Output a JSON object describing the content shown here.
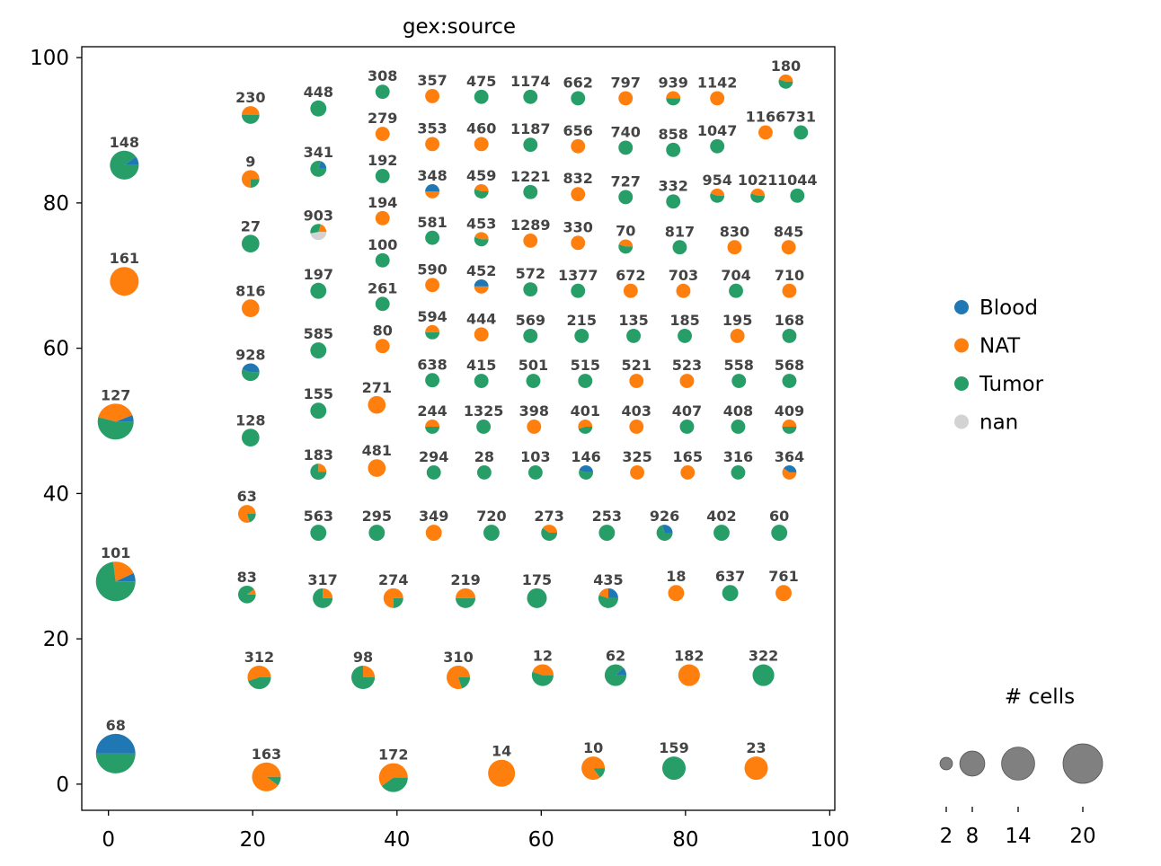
{
  "chart_data": {
    "type": "scatter",
    "subtype": "pie-markers",
    "title": "gex:source",
    "xlim": [
      -3.7,
      100.7
    ],
    "ylim": [
      -3.6,
      101.5
    ],
    "x_ticks": [
      0,
      20,
      40,
      60,
      80,
      100
    ],
    "y_ticks": [
      0,
      20,
      40,
      60,
      80,
      100
    ],
    "grid": false,
    "legend_position": "right",
    "categories": [
      "Blood",
      "NAT",
      "Tumor",
      "nan"
    ],
    "colors": {
      "Blood": "#1f77b4",
      "NAT": "#ff7f0e",
      "Tumor": "#279e68",
      "nan": "#d3d3d3"
    },
    "size_legend": {
      "title": "# cells",
      "values": [
        2,
        8,
        14,
        20
      ]
    },
    "point_fields": [
      "label",
      "x",
      "y",
      "size",
      "Blood",
      "NAT",
      "Tumor",
      "nan"
    ],
    "points": [
      [
        "148",
        2.2,
        85.2,
        10.6,
        0.1,
        0,
        0.9,
        0
      ],
      [
        "161",
        2.2,
        69.2,
        10.6,
        0,
        1,
        0,
        0
      ],
      [
        "127",
        1.0,
        49.9,
        16.5,
        0.06,
        0.4,
        0.54,
        0
      ],
      [
        "101",
        1.0,
        27.9,
        20,
        0.07,
        0.2,
        0.73,
        0
      ],
      [
        "68",
        1.0,
        4.2,
        20,
        0.5,
        0,
        0.5,
        0
      ],
      [
        "230",
        19.7,
        92.1,
        4,
        0,
        0.5,
        0.5,
        0
      ],
      [
        "9",
        19.7,
        83.3,
        4,
        0,
        0.75,
        0.25,
        0
      ],
      [
        "27",
        19.7,
        74.4,
        4,
        0,
        0,
        1,
        0
      ],
      [
        "816",
        19.7,
        65.5,
        4,
        0,
        1,
        0,
        0
      ],
      [
        "928",
        19.7,
        56.7,
        4,
        0.45,
        0,
        0.55,
        0
      ],
      [
        "128",
        19.7,
        47.7,
        4,
        0,
        0,
        1,
        0
      ],
      [
        "63",
        19.2,
        37.2,
        4,
        0,
        0.8,
        0.2,
        0
      ],
      [
        "83",
        19.2,
        26.1,
        4,
        0,
        0.1,
        0.9,
        0
      ],
      [
        "312",
        20.9,
        14.7,
        7,
        0,
        0.55,
        0.45,
        0
      ],
      [
        "163",
        21.9,
        1.0,
        10.6,
        0,
        0.9,
        0.1,
        0
      ],
      [
        "448",
        29.1,
        93.0,
        3.3,
        0,
        0,
        1,
        0
      ],
      [
        "341",
        29.1,
        84.7,
        3.3,
        0.2,
        0,
        0.8,
        0
      ],
      [
        "903",
        29.1,
        76.0,
        3.3,
        0,
        0.2,
        0.33,
        0.47
      ],
      [
        "197",
        29.1,
        67.9,
        3.3,
        0,
        0,
        1,
        0
      ],
      [
        "585",
        29.1,
        59.7,
        3.3,
        0,
        0,
        1,
        0
      ],
      [
        "155",
        29.1,
        51.4,
        3.3,
        0,
        0,
        1,
        0
      ],
      [
        "183",
        29.1,
        43.0,
        3.3,
        0,
        0.25,
        0.75,
        0
      ],
      [
        "563",
        29.1,
        34.6,
        3.3,
        0,
        0,
        1,
        0
      ],
      [
        "317",
        29.7,
        25.6,
        5,
        0,
        0.25,
        0.75,
        0
      ],
      [
        "98",
        35.3,
        14.7,
        7,
        0,
        0.25,
        0.75,
        0
      ],
      [
        "308",
        38.0,
        95.3,
        2.6,
        0,
        0,
        1,
        0
      ],
      [
        "279",
        38.0,
        89.5,
        2.6,
        0,
        1,
        0,
        0
      ],
      [
        "192",
        38.0,
        83.7,
        2.6,
        0,
        0,
        1,
        0
      ],
      [
        "194",
        38.0,
        77.9,
        2.6,
        0,
        1,
        0,
        0
      ],
      [
        "100",
        38.0,
        72.1,
        2.6,
        0,
        0,
        1,
        0
      ],
      [
        "261",
        38.0,
        66.1,
        2.6,
        0,
        0,
        1,
        0
      ],
      [
        "80",
        38.0,
        60.3,
        2.6,
        0,
        1,
        0,
        0
      ],
      [
        "271",
        37.2,
        52.2,
        4,
        0,
        1,
        0,
        0
      ],
      [
        "481",
        37.2,
        43.5,
        4,
        0,
        1,
        0,
        0
      ],
      [
        "295",
        37.2,
        34.6,
        3.3,
        0,
        0,
        1,
        0
      ],
      [
        "274",
        39.5,
        25.6,
        5,
        0,
        0.75,
        0.25,
        0
      ],
      [
        "172",
        39.5,
        0.9,
        10.6,
        0,
        0.6,
        0.4,
        0
      ],
      [
        "357",
        44.9,
        94.7,
        2.6,
        0,
        1,
        0,
        0
      ],
      [
        "353",
        44.9,
        88.1,
        2.6,
        0,
        1,
        0,
        0
      ],
      [
        "348",
        44.9,
        81.6,
        2.6,
        0.5,
        0.5,
        0,
        0
      ],
      [
        "581",
        44.9,
        75.2,
        2.6,
        0,
        0,
        1,
        0
      ],
      [
        "590",
        44.9,
        68.7,
        2.6,
        0,
        1,
        0,
        0
      ],
      [
        "594",
        44.9,
        62.2,
        2.6,
        0,
        0.5,
        0.5,
        0
      ],
      [
        "638",
        44.9,
        55.6,
        2.6,
        0,
        0,
        1,
        0
      ],
      [
        "244",
        44.9,
        49.2,
        2.6,
        0,
        0.5,
        0.5,
        0
      ],
      [
        "294",
        45.1,
        42.9,
        2.6,
        0,
        0,
        1,
        0
      ],
      [
        "349",
        45.1,
        34.6,
        3.3,
        0,
        1,
        0,
        0
      ],
      [
        "219",
        49.5,
        25.6,
        5,
        0,
        0.5,
        0.5,
        0
      ],
      [
        "310",
        48.5,
        14.7,
        7,
        0,
        0.8,
        0.2,
        0
      ],
      [
        "475",
        51.7,
        94.6,
        2.6,
        0,
        0,
        1,
        0
      ],
      [
        "460",
        51.7,
        88.1,
        2.6,
        0,
        1,
        0,
        0
      ],
      [
        "459",
        51.7,
        81.6,
        2.6,
        0,
        0.45,
        0.55,
        0
      ],
      [
        "453",
        51.7,
        75.0,
        2.6,
        0,
        0.45,
        0.55,
        0
      ],
      [
        "452",
        51.7,
        68.5,
        2.6,
        0.5,
        0.5,
        0,
        0
      ],
      [
        "444",
        51.7,
        61.9,
        2.6,
        0,
        1,
        0,
        0
      ],
      [
        "415",
        51.7,
        55.5,
        2.6,
        0,
        0,
        1,
        0
      ],
      [
        "1325",
        52.0,
        49.2,
        2.6,
        0,
        0,
        1,
        0
      ],
      [
        "28",
        52.1,
        42.9,
        2.6,
        0,
        0,
        1,
        0
      ],
      [
        "720",
        53.1,
        34.6,
        3.3,
        0,
        0,
        1,
        0
      ],
      [
        "14",
        54.5,
        1.5,
        9.3,
        0,
        1,
        0,
        0
      ],
      [
        "1174",
        58.5,
        94.6,
        2.6,
        0,
        0,
        1,
        0
      ],
      [
        "1187",
        58.5,
        88.0,
        2.6,
        0,
        0,
        1,
        0
      ],
      [
        "1221",
        58.5,
        81.5,
        2.6,
        0,
        0,
        1,
        0
      ],
      [
        "1289",
        58.5,
        74.8,
        2.6,
        0,
        1,
        0,
        0
      ],
      [
        "572",
        58.5,
        68.1,
        2.6,
        0,
        0,
        1,
        0
      ],
      [
        "569",
        58.5,
        61.7,
        2.6,
        0,
        0,
        1,
        0
      ],
      [
        "501",
        58.9,
        55.5,
        2.6,
        0,
        0,
        1,
        0
      ],
      [
        "398",
        59.0,
        49.2,
        2.6,
        0,
        1,
        0,
        0
      ],
      [
        "103",
        59.2,
        42.9,
        2.6,
        0,
        0,
        1,
        0
      ],
      [
        "273",
        61.1,
        34.6,
        3.3,
        0,
        0.4,
        0.6,
        0
      ],
      [
        "175",
        59.4,
        25.6,
        5,
        0,
        0,
        1,
        0
      ],
      [
        "12",
        60.2,
        15.0,
        6,
        0,
        0.45,
        0.55,
        0
      ],
      [
        "662",
        65.1,
        94.4,
        2.6,
        0,
        0,
        1,
        0
      ],
      [
        "656",
        65.1,
        87.8,
        2.6,
        0,
        1,
        0,
        0
      ],
      [
        "832",
        65.1,
        81.2,
        2.6,
        0,
        1,
        0,
        0
      ],
      [
        "330",
        65.1,
        74.5,
        2.6,
        0,
        1,
        0,
        0
      ],
      [
        "1377",
        65.1,
        67.9,
        2.6,
        0,
        0,
        1,
        0
      ],
      [
        "215",
        65.6,
        61.7,
        2.6,
        0,
        0,
        1,
        0
      ],
      [
        "515",
        66.1,
        55.5,
        2.6,
        0,
        0,
        1,
        0
      ],
      [
        "401",
        66.1,
        49.2,
        2.6,
        0,
        0.55,
        0.45,
        0
      ],
      [
        "146",
        66.2,
        42.9,
        2.6,
        0.45,
        0,
        0.55,
        0
      ],
      [
        "253",
        69.1,
        34.6,
        3.3,
        0,
        0,
        1,
        0
      ],
      [
        "435",
        69.3,
        25.6,
        5,
        0.25,
        0.2,
        0.55,
        0
      ],
      [
        "10",
        67.2,
        2.2,
        7,
        0,
        0.85,
        0.15,
        0
      ],
      [
        "797",
        71.7,
        94.4,
        2.6,
        0,
        1,
        0,
        0
      ],
      [
        "740",
        71.7,
        87.6,
        2.6,
        0,
        0,
        1,
        0
      ],
      [
        "727",
        71.7,
        80.8,
        2.6,
        0,
        0,
        1,
        0
      ],
      [
        "70",
        71.7,
        74.0,
        2.6,
        0,
        0.45,
        0.55,
        0
      ],
      [
        "672",
        72.4,
        67.9,
        2.6,
        0,
        1,
        0,
        0
      ],
      [
        "135",
        72.8,
        61.7,
        2.6,
        0,
        0,
        1,
        0
      ],
      [
        "521",
        73.2,
        55.5,
        2.6,
        0,
        1,
        0,
        0
      ],
      [
        "403",
        73.2,
        49.2,
        2.6,
        0,
        1,
        0,
        0
      ],
      [
        "325",
        73.3,
        42.9,
        2.6,
        0,
        1,
        0,
        0
      ],
      [
        "62",
        70.3,
        15.0,
        6,
        0.12,
        0,
        0.88,
        0
      ],
      [
        "939",
        78.3,
        94.4,
        2.6,
        0,
        0.5,
        0.5,
        0
      ],
      [
        "858",
        78.3,
        87.3,
        2.6,
        0,
        0,
        1,
        0
      ],
      [
        "332",
        78.3,
        80.2,
        2.6,
        0,
        0,
        1,
        0
      ],
      [
        "817",
        79.2,
        73.9,
        2.6,
        0,
        0,
        1,
        0
      ],
      [
        "703",
        79.7,
        67.9,
        2.6,
        0,
        1,
        0,
        0
      ],
      [
        "185",
        79.9,
        61.7,
        2.6,
        0,
        0,
        1,
        0
      ],
      [
        "523",
        80.2,
        55.5,
        2.6,
        0,
        1,
        0,
        0
      ],
      [
        "407",
        80.2,
        49.2,
        2.6,
        0,
        0,
        1,
        0
      ],
      [
        "165",
        80.3,
        42.9,
        2.6,
        0,
        1,
        0,
        0
      ],
      [
        "926",
        77.1,
        34.6,
        3.3,
        0.3,
        0,
        0.7,
        0
      ],
      [
        "18",
        78.7,
        26.3,
        3.3,
        0,
        1,
        0,
        0
      ],
      [
        "182",
        80.5,
        15.0,
        6,
        0,
        1,
        0,
        0
      ],
      [
        "159",
        78.4,
        2.2,
        7,
        0,
        0,
        1,
        0
      ],
      [
        "1142",
        84.4,
        94.4,
        2.6,
        0,
        1,
        0,
        0
      ],
      [
        "1047",
        84.4,
        87.8,
        2.6,
        0,
        0,
        1,
        0
      ],
      [
        "954",
        84.4,
        81.0,
        2.6,
        0,
        0.45,
        0.55,
        0
      ],
      [
        "830",
        86.8,
        73.9,
        2.6,
        0,
        1,
        0,
        0
      ],
      [
        "704",
        87.0,
        67.9,
        2.6,
        0,
        0,
        1,
        0
      ],
      [
        "195",
        87.2,
        61.7,
        2.6,
        0,
        1,
        0,
        0
      ],
      [
        "558",
        87.4,
        55.5,
        2.6,
        0,
        0,
        1,
        0
      ],
      [
        "408",
        87.3,
        49.2,
        2.6,
        0,
        0,
        1,
        0
      ],
      [
        "316",
        87.3,
        42.9,
        2.6,
        0,
        0,
        1,
        0
      ],
      [
        "402",
        85.0,
        34.6,
        3.3,
        0,
        0,
        1,
        0
      ],
      [
        "637",
        86.2,
        26.3,
        3.3,
        0,
        0,
        1,
        0
      ],
      [
        "322",
        90.8,
        15.0,
        6,
        0,
        0,
        1,
        0
      ],
      [
        "23",
        89.8,
        2.2,
        7,
        0,
        1,
        0,
        0
      ],
      [
        "180",
        93.9,
        96.7,
        2.6,
        0,
        0.45,
        0.55,
        0
      ],
      [
        "1166",
        91.1,
        89.7,
        2.6,
        0,
        1,
        0,
        0
      ],
      [
        "731",
        96.0,
        89.7,
        2.6,
        0,
        0,
        1,
        0
      ],
      [
        "1021",
        90.0,
        81.0,
        2.6,
        0,
        0.45,
        0.55,
        0
      ],
      [
        "1044",
        95.5,
        81.0,
        2.6,
        0,
        0,
        1,
        0
      ],
      [
        "845",
        94.3,
        73.9,
        2.6,
        0,
        1,
        0,
        0
      ],
      [
        "710",
        94.4,
        67.9,
        2.6,
        0,
        1,
        0,
        0
      ],
      [
        "168",
        94.4,
        61.7,
        2.6,
        0,
        0,
        1,
        0
      ],
      [
        "568",
        94.4,
        55.5,
        2.6,
        0,
        0,
        1,
        0
      ],
      [
        "409",
        94.4,
        49.2,
        2.6,
        0,
        0.5,
        0.5,
        0
      ],
      [
        "364",
        94.4,
        42.9,
        2.6,
        0.4,
        0.6,
        0,
        0
      ],
      [
        "60",
        93.0,
        34.6,
        3.3,
        0,
        0,
        1,
        0
      ],
      [
        "761",
        93.6,
        26.3,
        3.3,
        0,
        1,
        0,
        0
      ]
    ]
  }
}
